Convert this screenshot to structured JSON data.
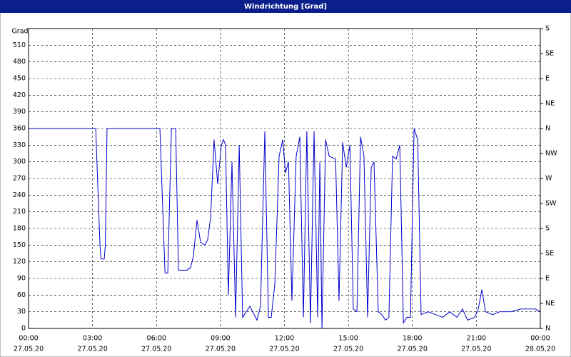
{
  "chart_data": {
    "type": "line",
    "title": "Windrichtung [Grad]",
    "y_label": "Grad",
    "xlim": [
      0,
      24
    ],
    "xticks": [
      {
        "value": 0,
        "label": "00:00",
        "date": "27.05.20"
      },
      {
        "value": 3,
        "label": "03:00",
        "date": "27.05.20"
      },
      {
        "value": 6,
        "label": "06:00",
        "date": "27.05.20"
      },
      {
        "value": 9,
        "label": "09:00",
        "date": "27.05.20"
      },
      {
        "value": 12,
        "label": "12:00",
        "date": "27.05.20"
      },
      {
        "value": 15,
        "label": "15:00",
        "date": "27.05.20"
      },
      {
        "value": 18,
        "label": "18:00",
        "date": "27.05.20"
      },
      {
        "value": 21,
        "label": "21:00",
        "date": "27.05.20"
      },
      {
        "value": 24,
        "label": "00:00",
        "date": "28.05.20"
      }
    ],
    "ylim": [
      0,
      540
    ],
    "yticks": [
      0,
      30,
      60,
      90,
      120,
      150,
      180,
      210,
      240,
      270,
      300,
      330,
      360,
      390,
      420,
      450,
      480,
      510
    ],
    "y2lim": [
      0,
      540
    ],
    "y2ticks": [
      {
        "value": 0,
        "label": "N"
      },
      {
        "value": 45,
        "label": "NE"
      },
      {
        "value": 90,
        "label": "E"
      },
      {
        "value": 135,
        "label": "SE"
      },
      {
        "value": 180,
        "label": "S"
      },
      {
        "value": 225,
        "label": "SW"
      },
      {
        "value": 270,
        "label": "W"
      },
      {
        "value": 315,
        "label": "NW"
      },
      {
        "value": 360,
        "label": "N"
      },
      {
        "value": 405,
        "label": "NE"
      },
      {
        "value": 450,
        "label": "E"
      },
      {
        "value": 495,
        "label": "SE"
      },
      {
        "value": 540,
        "label": "S"
      }
    ],
    "grid": true,
    "series": [
      {
        "color": "#0000cc",
        "x": [
          0,
          3.15,
          3.35,
          3.4,
          3.55,
          3.6,
          3.68,
          6.16,
          6.4,
          6.53,
          6.7,
          6.9,
          7.03,
          7.43,
          7.6,
          7.73,
          7.9,
          8.07,
          8.27,
          8.4,
          8.54,
          8.7,
          8.87,
          9.04,
          9.14,
          9.24,
          9.37,
          9.54,
          9.71,
          9.88,
          10.04,
          10.38,
          10.71,
          10.88,
          11.08,
          11.25,
          11.38,
          11.55,
          11.75,
          11.92,
          12.05,
          12.19,
          12.35,
          12.55,
          12.72,
          12.89,
          13.05,
          13.22,
          13.39,
          13.56,
          13.66,
          13.76,
          13.93,
          14.1,
          14.4,
          14.56,
          14.73,
          14.9,
          15.07,
          15.23,
          15.4,
          15.57,
          15.73,
          15.9,
          16.07,
          16.2,
          16.4,
          16.57,
          16.74,
          16.9,
          17.07,
          17.24,
          17.41,
          17.58,
          17.74,
          17.91,
          18.08,
          18.25,
          18.41,
          18.75,
          19.08,
          19.42,
          19.75,
          20.09,
          20.35,
          20.59,
          20.92,
          21.09,
          21.26,
          21.43,
          21.76,
          22.1,
          22.6,
          23.1,
          23.77,
          24
        ],
        "values": [
          360,
          360,
          150,
          125,
          125,
          150,
          360,
          360,
          100,
          100,
          360,
          360,
          105,
          105,
          110,
          130,
          195,
          155,
          150,
          160,
          200,
          340,
          260,
          330,
          340,
          330,
          60,
          300,
          20,
          330,
          20,
          40,
          15,
          40,
          355,
          20,
          20,
          80,
          310,
          340,
          280,
          300,
          50,
          310,
          345,
          20,
          355,
          10,
          355,
          20,
          300,
          0,
          340,
          310,
          305,
          50,
          335,
          290,
          330,
          35,
          30,
          345,
          310,
          20,
          290,
          300,
          30,
          25,
          15,
          20,
          310,
          305,
          330,
          10,
          20,
          20,
          360,
          340,
          25,
          30,
          25,
          20,
          30,
          20,
          35,
          15,
          20,
          35,
          70,
          30,
          25,
          30,
          30,
          35,
          35,
          30
        ]
      }
    ]
  }
}
